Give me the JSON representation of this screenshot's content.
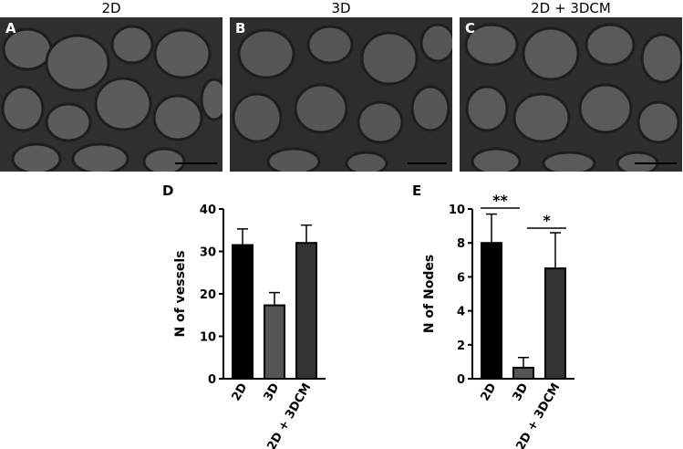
{
  "panels": [
    {
      "title": "2D",
      "letter": "A"
    },
    {
      "title": "3D",
      "letter": "B"
    },
    {
      "title": "2D + 3DCM",
      "letter": "C"
    }
  ],
  "colors": {
    "bar_2d": "#000000",
    "bar_3d": "#555555",
    "bar_2d3dcm": "#333333",
    "micrograph_bg": "#2b2b2b"
  },
  "chart_data": [
    {
      "type": "bar",
      "panel_letter": "D",
      "categories": [
        "2D",
        "3D",
        "2D + 3DCM"
      ],
      "values": [
        31.5,
        17.3,
        32.0
      ],
      "errors": [
        3.8,
        3.0,
        4.2
      ],
      "ylabel": "N of vessels",
      "xlabel": "",
      "ylim": [
        0,
        40
      ],
      "yticks": [
        0,
        10,
        20,
        30,
        40
      ],
      "significance": []
    },
    {
      "type": "bar",
      "panel_letter": "E",
      "categories": [
        "2D",
        "3D",
        "2D + 3DCM"
      ],
      "values": [
        8.0,
        0.65,
        6.5
      ],
      "errors": [
        1.7,
        0.6,
        2.1
      ],
      "ylabel": "N of Nodes",
      "xlabel": "",
      "ylim": [
        0,
        10
      ],
      "yticks": [
        0,
        2,
        4,
        6,
        8,
        10
      ],
      "significance": [
        {
          "from": 0,
          "to": 1,
          "label": "**"
        },
        {
          "from": 1,
          "to": 2,
          "label": "*"
        }
      ]
    }
  ]
}
